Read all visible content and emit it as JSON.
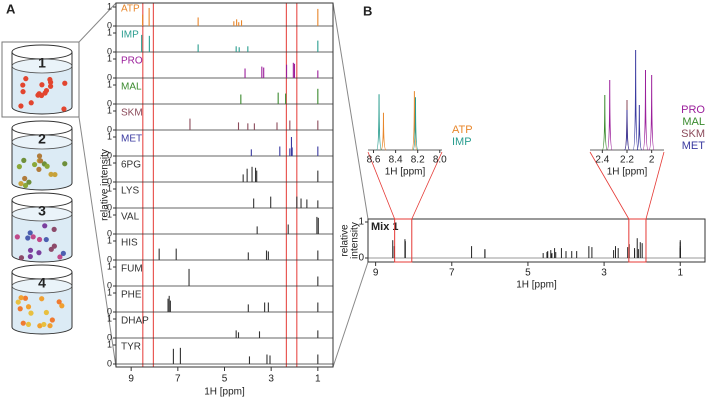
{
  "panel_a": {
    "label": "A",
    "beakers": [
      {
        "label": "1",
        "dot_color": "#e2452f"
      },
      {
        "label": "2",
        "dot_colors": [
          "#8aa838",
          "#c7a23a",
          "#6e8f3a",
          "#b07c3c"
        ]
      },
      {
        "label": "3",
        "dot_colors": [
          "#7b3f9e",
          "#c04a8a",
          "#4c5fb0",
          "#8c4a6a"
        ]
      },
      {
        "label": "4",
        "dot_colors": [
          "#f0a030",
          "#e8c040",
          "#f07a30"
        ]
      }
    ],
    "ylabel": "relative intensity",
    "xlabel": "1H [ppm]",
    "xlim": [
      9.65,
      0.35
    ],
    "xticks": [
      9,
      7,
      5,
      3,
      1
    ],
    "yticks": [
      0,
      1
    ],
    "highlight_ppm": [
      [
        8.5,
        8.05
      ],
      [
        2.35,
        1.9
      ]
    ],
    "spectra": [
      {
        "name": "ATP",
        "color": "#e8862a",
        "peaks": [
          [
            8.51,
            0.6
          ],
          [
            8.23,
            0.95
          ],
          [
            6.13,
            0.45
          ],
          [
            4.6,
            0.25
          ],
          [
            4.48,
            0.35
          ],
          [
            4.39,
            0.2
          ],
          [
            4.27,
            0.3
          ],
          [
            1.0,
            0.9
          ]
        ]
      },
      {
        "name": "IMP",
        "color": "#2a9d8f",
        "peaks": [
          [
            8.55,
            0.9
          ],
          [
            8.22,
            0.85
          ],
          [
            6.13,
            0.4
          ],
          [
            4.5,
            0.3
          ],
          [
            4.37,
            0.25
          ],
          [
            4.0,
            0.3
          ],
          [
            1.0,
            0.6
          ]
        ]
      },
      {
        "name": "PRO",
        "color": "#9b1f9b",
        "peaks": [
          [
            4.12,
            0.5
          ],
          [
            3.4,
            0.6
          ],
          [
            3.32,
            0.55
          ],
          [
            2.34,
            0.7
          ],
          [
            2.05,
            0.8
          ],
          [
            2.0,
            0.75
          ],
          [
            1.0,
            0.4
          ]
        ]
      },
      {
        "name": "MAL",
        "color": "#3a8a2e",
        "peaks": [
          [
            4.3,
            0.5
          ],
          [
            2.7,
            0.6
          ],
          [
            2.38,
            0.55
          ],
          [
            1.0,
            0.8
          ]
        ]
      },
      {
        "name": "SKM",
        "color": "#8b4a5a",
        "peaks": [
          [
            6.48,
            0.6
          ],
          [
            4.4,
            0.4
          ],
          [
            4.0,
            0.35
          ],
          [
            3.72,
            0.35
          ],
          [
            2.75,
            0.4
          ],
          [
            2.2,
            0.5
          ],
          [
            1.0,
            0.5
          ]
        ]
      },
      {
        "name": "MET",
        "color": "#3a3aa0",
        "peaks": [
          [
            3.85,
            0.35
          ],
          [
            2.63,
            0.5
          ],
          [
            2.13,
            1.0
          ],
          [
            2.2,
            0.4
          ],
          [
            2.1,
            0.45
          ],
          [
            1.0,
            0.5
          ]
        ]
      },
      {
        "name": "6PG",
        "color": "#333333",
        "peaks": [
          [
            4.2,
            0.4
          ],
          [
            4.03,
            0.7
          ],
          [
            3.82,
            0.8
          ],
          [
            3.67,
            0.75
          ],
          [
            3.62,
            0.6
          ],
          [
            1.0,
            0.6
          ]
        ]
      },
      {
        "name": "LYS",
        "color": "#333333",
        "peaks": [
          [
            3.75,
            0.5
          ],
          [
            3.02,
            0.6
          ],
          [
            1.9,
            0.6
          ],
          [
            1.72,
            0.5
          ],
          [
            1.47,
            0.45
          ],
          [
            1.0,
            0.4
          ]
        ]
      },
      {
        "name": "VAL",
        "color": "#333333",
        "peaks": [
          [
            3.6,
            0.4
          ],
          [
            2.27,
            0.5
          ],
          [
            1.04,
            0.9
          ],
          [
            0.98,
            0.85
          ]
        ]
      },
      {
        "name": "HIS",
        "color": "#333333",
        "peaks": [
          [
            7.8,
            0.6
          ],
          [
            7.07,
            0.6
          ],
          [
            3.98,
            0.4
          ],
          [
            3.2,
            0.5
          ],
          [
            3.12,
            0.45
          ],
          [
            1.0,
            0.5
          ]
        ]
      },
      {
        "name": "FUM",
        "color": "#333333",
        "peaks": [
          [
            6.52,
            0.9
          ],
          [
            1.0,
            0.5
          ]
        ]
      },
      {
        "name": "PHE",
        "color": "#333333",
        "peaks": [
          [
            7.42,
            0.7
          ],
          [
            7.37,
            0.85
          ],
          [
            7.32,
            0.6
          ],
          [
            3.98,
            0.4
          ],
          [
            3.28,
            0.5
          ],
          [
            3.12,
            0.5
          ],
          [
            1.0,
            0.5
          ]
        ]
      },
      {
        "name": "DHAP",
        "color": "#333333",
        "peaks": [
          [
            4.5,
            0.4
          ],
          [
            4.4,
            0.3
          ],
          [
            3.5,
            0.35
          ],
          [
            1.0,
            0.4
          ]
        ]
      },
      {
        "name": "TYR",
        "color": "#333333",
        "peaks": [
          [
            7.19,
            0.8
          ],
          [
            6.89,
            0.85
          ],
          [
            3.93,
            0.4
          ],
          [
            3.18,
            0.5
          ],
          [
            3.05,
            0.45
          ],
          [
            1.0,
            0.5
          ]
        ]
      }
    ]
  },
  "panel_b": {
    "label": "B",
    "mix": {
      "name": "Mix 1",
      "ylabel_lines": [
        "relative",
        "intensity"
      ],
      "xlabel": "1H [ppm]",
      "xlim": [
        9.2,
        0.35
      ],
      "xticks": [
        9,
        7,
        5,
        3,
        1
      ],
      "yticks": [
        0,
        1
      ]
    },
    "insets": [
      {
        "xlim": [
          8.65,
          7.98
        ],
        "xticks": [
          8.6,
          8.4,
          8.2,
          {
            "value": 8,
            "label": "8.0"
          }
        ],
        "xlabel": "1H [ppm]"
      },
      {
        "xlim": [
          2.5,
          1.9
        ],
        "xticks": [
          2.4,
          2.2,
          2
        ],
        "xlabel": "1H [ppm]"
      }
    ]
  }
}
